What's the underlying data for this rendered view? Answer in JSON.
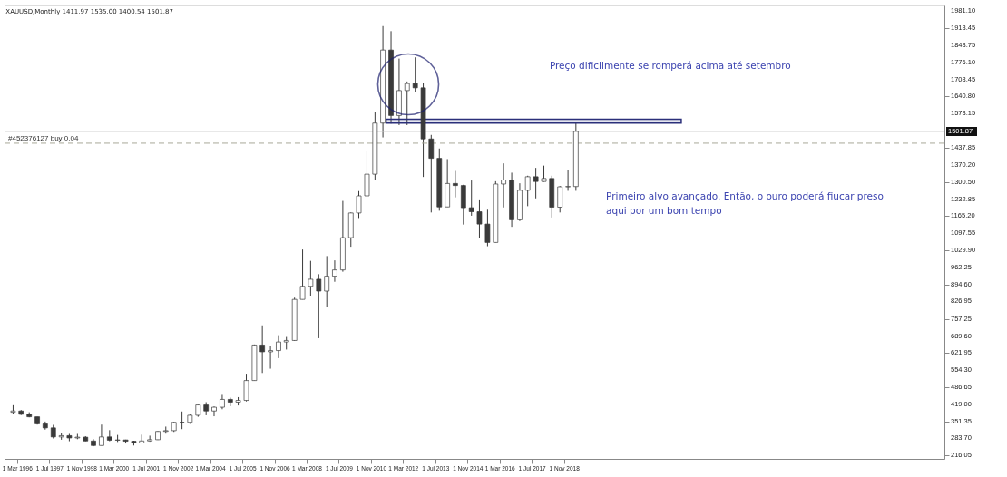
{
  "chart_data": {
    "type": "candlestick",
    "title": "XAUUSD,Monthly 1411.97 1535.00 1400.54 1501.87",
    "x": [
      "1996-01",
      "1996-05",
      "1996-09",
      "1997-01",
      "1997-05",
      "1997-09",
      "1998-01",
      "1998-05",
      "1998-09",
      "1999-01",
      "1999-05",
      "1999-09",
      "2000-01",
      "2000-05",
      "2000-09",
      "2001-01",
      "2001-05",
      "2001-09",
      "2002-01",
      "2002-05",
      "2002-09",
      "2003-01",
      "2003-05",
      "2003-09",
      "2004-01",
      "2004-05",
      "2004-09",
      "2005-01",
      "2005-05",
      "2005-09",
      "2006-01",
      "2006-05",
      "2006-09",
      "2007-01",
      "2007-05",
      "2007-09",
      "2008-01",
      "2008-05",
      "2008-09",
      "2009-01",
      "2009-05",
      "2009-09",
      "2010-01",
      "2010-05",
      "2010-09",
      "2011-01",
      "2011-05",
      "2011-09",
      "2012-01",
      "2012-05",
      "2012-09",
      "2013-01",
      "2013-05",
      "2013-09",
      "2014-01",
      "2014-05",
      "2014-09",
      "2015-01",
      "2015-05",
      "2015-09",
      "2016-01",
      "2016-05",
      "2016-09",
      "2017-01",
      "2017-05",
      "2017-09",
      "2018-01",
      "2018-05",
      "2018-09",
      "2019-01",
      "2019-05"
    ],
    "series": [
      {
        "color": "#3a3a3a",
        "ohlc": [
          [
            387,
            415,
            380,
            392
          ],
          [
            392,
            396,
            376,
            379
          ],
          [
            379,
            387,
            367,
            369
          ],
          [
            369,
            369,
            338,
            341
          ],
          [
            341,
            350,
            318,
            325
          ],
          [
            325,
            337,
            283,
            289
          ],
          [
            289,
            305,
            278,
            294
          ],
          [
            294,
            301,
            272,
            285
          ],
          [
            285,
            301,
            280,
            288
          ],
          [
            288,
            292,
            272,
            273
          ],
          [
            273,
            280,
            252,
            255
          ],
          [
            255,
            338,
            255,
            289
          ],
          [
            289,
            316,
            272,
            276
          ],
          [
            276,
            297,
            269,
            277
          ],
          [
            277,
            278,
            263,
            272
          ],
          [
            272,
            274,
            255,
            265
          ],
          [
            265,
            298,
            263,
            273
          ],
          [
            273,
            294,
            270,
            278
          ],
          [
            278,
            312,
            277,
            311
          ],
          [
            311,
            330,
            302,
            314
          ],
          [
            314,
            349,
            309,
            347
          ],
          [
            347,
            390,
            320,
            347
          ],
          [
            347,
            378,
            341,
            375
          ],
          [
            375,
            417,
            369,
            416
          ],
          [
            416,
            427,
            375,
            392
          ],
          [
            392,
            410,
            371,
            407
          ],
          [
            407,
            456,
            399,
            438
          ],
          [
            438,
            445,
            411,
            427
          ],
          [
            427,
            447,
            414,
            434
          ],
          [
            434,
            540,
            430,
            513
          ],
          [
            513,
            656,
            513,
            654
          ],
          [
            654,
            732,
            543,
            627
          ],
          [
            627,
            650,
            560,
            632
          ],
          [
            632,
            693,
            602,
            666
          ],
          [
            666,
            686,
            636,
            672
          ],
          [
            672,
            842,
            670,
            835
          ],
          [
            835,
            1033,
            835,
            887
          ],
          [
            887,
            988,
            850,
            915
          ],
          [
            915,
            935,
            681,
            868
          ],
          [
            868,
            1007,
            805,
            927
          ],
          [
            927,
            990,
            905,
            952
          ],
          [
            952,
            1226,
            945,
            1080
          ],
          [
            1080,
            1180,
            1044,
            1178
          ],
          [
            1178,
            1265,
            1158,
            1246
          ],
          [
            1246,
            1425,
            1245,
            1332
          ],
          [
            1332,
            1578,
            1308,
            1535
          ],
          [
            1535,
            1920,
            1478,
            1825
          ],
          [
            1825,
            1900,
            1533,
            1565
          ],
          [
            1565,
            1791,
            1527,
            1664
          ],
          [
            1664,
            1700,
            1527,
            1692
          ],
          [
            1692,
            1796,
            1658,
            1675
          ],
          [
            1675,
            1696,
            1321,
            1472
          ],
          [
            1472,
            1488,
            1180,
            1395
          ],
          [
            1395,
            1434,
            1187,
            1202
          ],
          [
            1202,
            1392,
            1202,
            1295
          ],
          [
            1295,
            1345,
            1240,
            1287
          ],
          [
            1287,
            1290,
            1132,
            1199
          ],
          [
            1199,
            1307,
            1167,
            1183
          ],
          [
            1183,
            1232,
            1077,
            1134
          ],
          [
            1134,
            1191,
            1046,
            1061
          ],
          [
            1061,
            1304,
            1061,
            1293
          ],
          [
            1293,
            1375,
            1200,
            1309
          ],
          [
            1309,
            1338,
            1123,
            1151
          ],
          [
            1151,
            1296,
            1146,
            1268
          ],
          [
            1268,
            1326,
            1205,
            1322
          ],
          [
            1322,
            1357,
            1236,
            1303
          ],
          [
            1303,
            1366,
            1302,
            1315
          ],
          [
            1315,
            1326,
            1160,
            1201
          ],
          [
            1201,
            1285,
            1180,
            1282
          ],
          [
            1282,
            1347,
            1266,
            1283
          ],
          [
            1283,
            1535,
            1266,
            1501.87
          ]
        ]
      }
    ],
    "xlim": [
      "1995-11",
      "2034-06"
    ],
    "xticks": [
      {
        "value": "1996-03",
        "label": "1 Mar 1996"
      },
      {
        "value": "1997-07",
        "label": "1 Jul 1997"
      },
      {
        "value": "1998-11",
        "label": "1 Nov 1998"
      },
      {
        "value": "2000-03",
        "label": "1 Mar 2000"
      },
      {
        "value": "2001-07",
        "label": "1 Jul 2001"
      },
      {
        "value": "2002-11",
        "label": "1 Nov 2002"
      },
      {
        "value": "2004-03",
        "label": "1 Mar 2004"
      },
      {
        "value": "2005-07",
        "label": "1 Jul 2005"
      },
      {
        "value": "2006-11",
        "label": "1 Nov 2006"
      },
      {
        "value": "2008-03",
        "label": "1 Mar 2008"
      },
      {
        "value": "2009-07",
        "label": "1 Jul 2009"
      },
      {
        "value": "2010-11",
        "label": "1 Nov 2010"
      },
      {
        "value": "2012-03",
        "label": "1 Mar 2012"
      },
      {
        "value": "2013-07",
        "label": "1 Jul 2013"
      },
      {
        "value": "2014-11",
        "label": "1 Nov 2014"
      },
      {
        "value": "2016-03",
        "label": "1 Mar 2016"
      },
      {
        "value": "2017-07",
        "label": "1 Jul 2017"
      },
      {
        "value": "2018-11",
        "label": "1 Nov 2018"
      }
    ],
    "ylim": [
      202,
      2002
    ],
    "yticks": [
      {
        "value": 216.05,
        "label": "216.05"
      },
      {
        "value": 283.7,
        "label": "283.70"
      },
      {
        "value": 351.35,
        "label": "351.35"
      },
      {
        "value": 419,
        "label": "419.00"
      },
      {
        "value": 486.65,
        "label": "486.65"
      },
      {
        "value": 554.3,
        "label": "554.30"
      },
      {
        "value": 621.95,
        "label": "621.95"
      },
      {
        "value": 689.6,
        "label": "689.60"
      },
      {
        "value": 757.25,
        "label": "757.25"
      },
      {
        "value": 826.95,
        "label": "826.95"
      },
      {
        "value": 894.6,
        "label": "894.60"
      },
      {
        "value": 962.25,
        "label": "962.25"
      },
      {
        "value": 1029.9,
        "label": "1029.90"
      },
      {
        "value": 1097.55,
        "label": "1097.55"
      },
      {
        "value": 1165.2,
        "label": "1165.20"
      },
      {
        "value": 1232.85,
        "label": "1232.85"
      },
      {
        "value": 1300.5,
        "label": "1300.50"
      },
      {
        "value": 1370.2,
        "label": "1370.20"
      },
      {
        "value": 1437.85,
        "label": "1437.85"
      },
      {
        "value": 1573.15,
        "label": "1573.15"
      },
      {
        "value": 1640.8,
        "label": "1640.80"
      },
      {
        "value": 1708.45,
        "label": "1708.45"
      },
      {
        "value": 1776.1,
        "label": "1776.10"
      },
      {
        "value": 1843.75,
        "label": "1843.75"
      },
      {
        "value": 1913.45,
        "label": "1913.45"
      },
      {
        "value": 1981.1,
        "label": "1981.10"
      }
    ],
    "ref_lines": [
      {
        "axis": "y",
        "value": 1501.87,
        "label": "1501.87",
        "color": "#c8c8c8",
        "line_style": "solid"
      },
      {
        "axis": "y",
        "value": 1455,
        "label": "#452376127 buy 0.04",
        "color": "#a8a898",
        "line_style": "dashed"
      }
    ],
    "bands": [
      {
        "axis": "y",
        "from": 1535,
        "to": 1550,
        "color": "#2b2f7a"
      }
    ],
    "annotations": [
      "Preço dificilmente se romperá acima até setembro",
      "Primeiro alvo avançado. Então, o ouro poderá fiucar preso\naqui por um bom tempo"
    ],
    "grid": false
  }
}
